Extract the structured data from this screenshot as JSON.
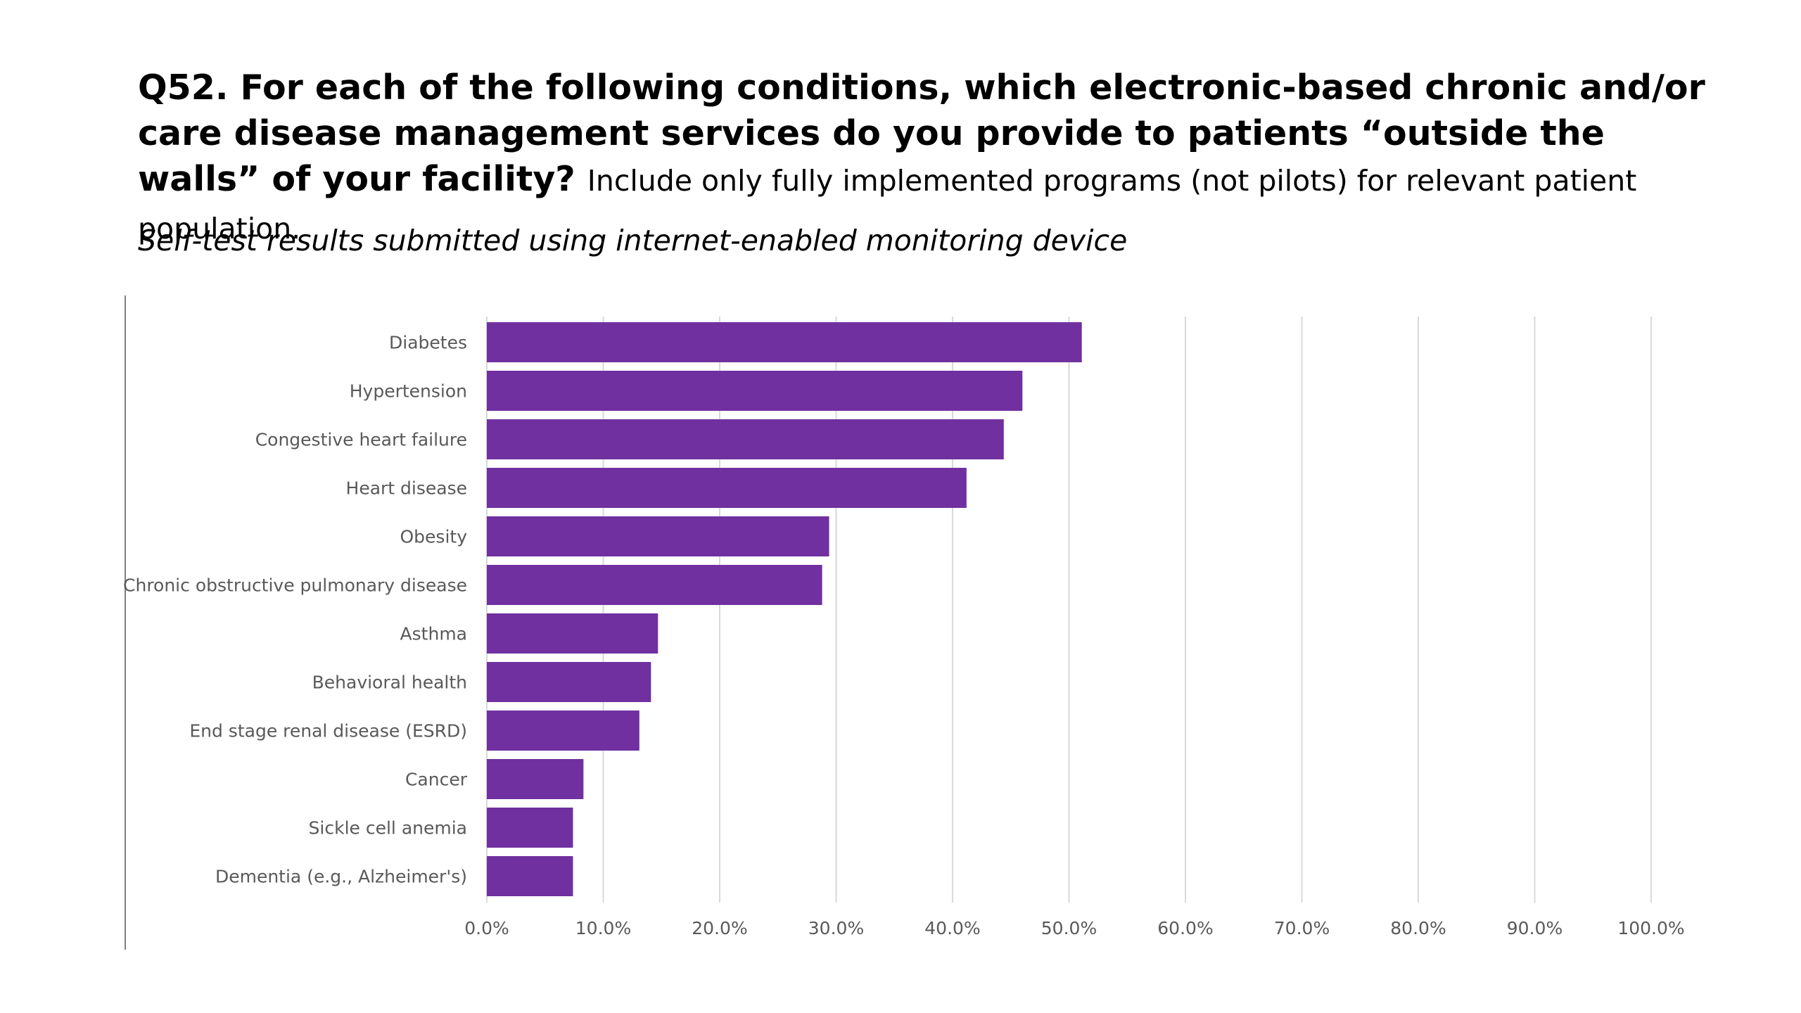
{
  "slide": {
    "title_bold": "Q52. For each of the following conditions, which electronic-based chronic and/or care disease management services do you provide to patients “outside the walls” of your facility?",
    "title_note": "Include only fully implemented programs (not pilots) for relevant patient population.",
    "subtitle": "Self-test results submitted using internet-enabled monitoring device"
  },
  "colors": {
    "bar": "#7030a0",
    "grid": "#d9d9d9",
    "label": "#595959"
  },
  "chart_data": {
    "type": "bar",
    "orientation": "horizontal",
    "categories": [
      "Diabetes",
      "Hypertension",
      "Congestive heart failure",
      "Heart disease",
      "Obesity",
      "Chronic obstructive pulmonary disease",
      "Asthma",
      "Behavioral health",
      "End stage renal disease (ESRD)",
      "Cancer",
      "Sickle cell anemia",
      "Dementia (e.g., Alzheimer's)"
    ],
    "values": [
      51.1,
      46.0,
      44.4,
      41.2,
      29.4,
      28.8,
      14.7,
      14.1,
      13.1,
      8.3,
      7.4,
      7.4
    ],
    "xlim": [
      0,
      100
    ],
    "x_ticks": [
      0,
      10,
      20,
      30,
      40,
      50,
      60,
      70,
      80,
      90,
      100
    ],
    "x_tick_labels": [
      "0.0%",
      "10.0%",
      "20.0%",
      "30.0%",
      "40.0%",
      "50.0%",
      "60.0%",
      "70.0%",
      "80.0%",
      "90.0%",
      "100.0%"
    ],
    "grid": "vertical",
    "legend": "none"
  }
}
